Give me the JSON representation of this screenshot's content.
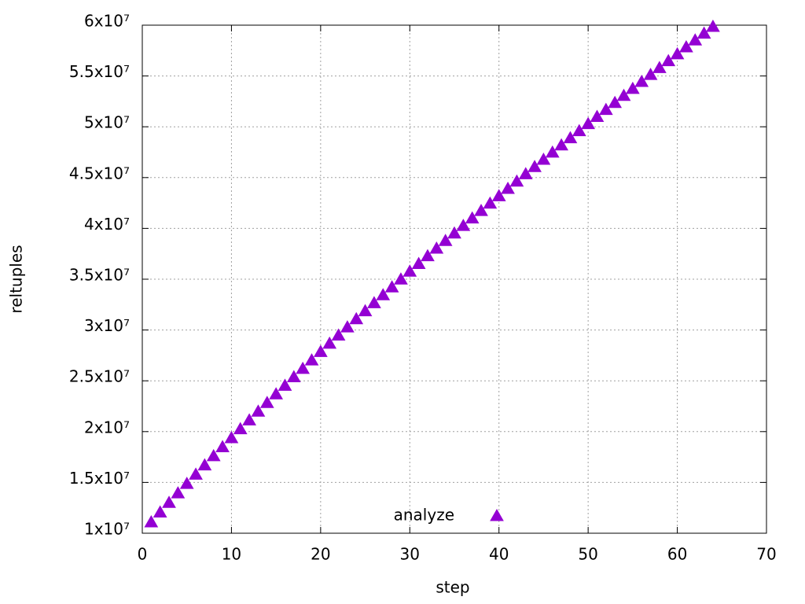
{
  "chart_data": {
    "type": "scatter",
    "x_label": "step",
    "y_label": "reltuples",
    "series": [
      {
        "name": "analyze",
        "color": "#9400d3",
        "marker": "triangle",
        "x": [
          1,
          2,
          3,
          4,
          5,
          6,
          7,
          8,
          9,
          10,
          11,
          12,
          13,
          14,
          15,
          16,
          17,
          18,
          19,
          20,
          21,
          22,
          23,
          24,
          25,
          26,
          27,
          28,
          29,
          30,
          31,
          32,
          33,
          34,
          35,
          36,
          37,
          38,
          39,
          40,
          41,
          42,
          43,
          44,
          45,
          46,
          47,
          48,
          49,
          50,
          51,
          52,
          53,
          54,
          55,
          56,
          57,
          58,
          59,
          60,
          61,
          62,
          63,
          64
        ],
        "values": [
          11080000,
          12050000,
          13000000,
          13940000,
          14870000,
          15780000,
          16690000,
          17590000,
          18480000,
          19370000,
          20250000,
          21120000,
          21980000,
          22830000,
          23680000,
          24520000,
          25360000,
          26190000,
          27020000,
          27850000,
          28660000,
          29470000,
          30270000,
          31070000,
          31860000,
          32650000,
          33430000,
          34210000,
          34980000,
          35750000,
          36510000,
          37270000,
          38020000,
          38770000,
          39510000,
          40250000,
          40990000,
          41720000,
          42450000,
          43180000,
          43900000,
          44620000,
          45340000,
          46050000,
          46760000,
          47470000,
          48180000,
          48880000,
          49580000,
          50280000,
          50980000,
          51670000,
          52360000,
          53050000,
          53740000,
          54430000,
          55110000,
          55790000,
          56470000,
          57150000,
          57830000,
          58510000,
          59180000,
          59850000
        ]
      }
    ],
    "xlim": [
      0,
      70
    ],
    "xticks": [
      0,
      10,
      20,
      30,
      40,
      50,
      60,
      70
    ],
    "ylim": [
      10000000,
      60000000
    ],
    "yticks": [
      {
        "value": 10000000,
        "label": "1x10⁷"
      },
      {
        "value": 15000000,
        "label": "1.5x10⁷"
      },
      {
        "value": 20000000,
        "label": "2x10⁷"
      },
      {
        "value": 25000000,
        "label": "2.5x10⁷"
      },
      {
        "value": 30000000,
        "label": "3x10⁷"
      },
      {
        "value": 35000000,
        "label": "3.5x10⁷"
      },
      {
        "value": 40000000,
        "label": "4x10⁷"
      },
      {
        "value": 45000000,
        "label": "4.5x10⁷"
      },
      {
        "value": 50000000,
        "label": "5x10⁷"
      },
      {
        "value": 55000000,
        "label": "5.5x10⁷"
      },
      {
        "value": 60000000,
        "label": "6x10⁷"
      }
    ],
    "grid": true,
    "legend": "bottom"
  }
}
